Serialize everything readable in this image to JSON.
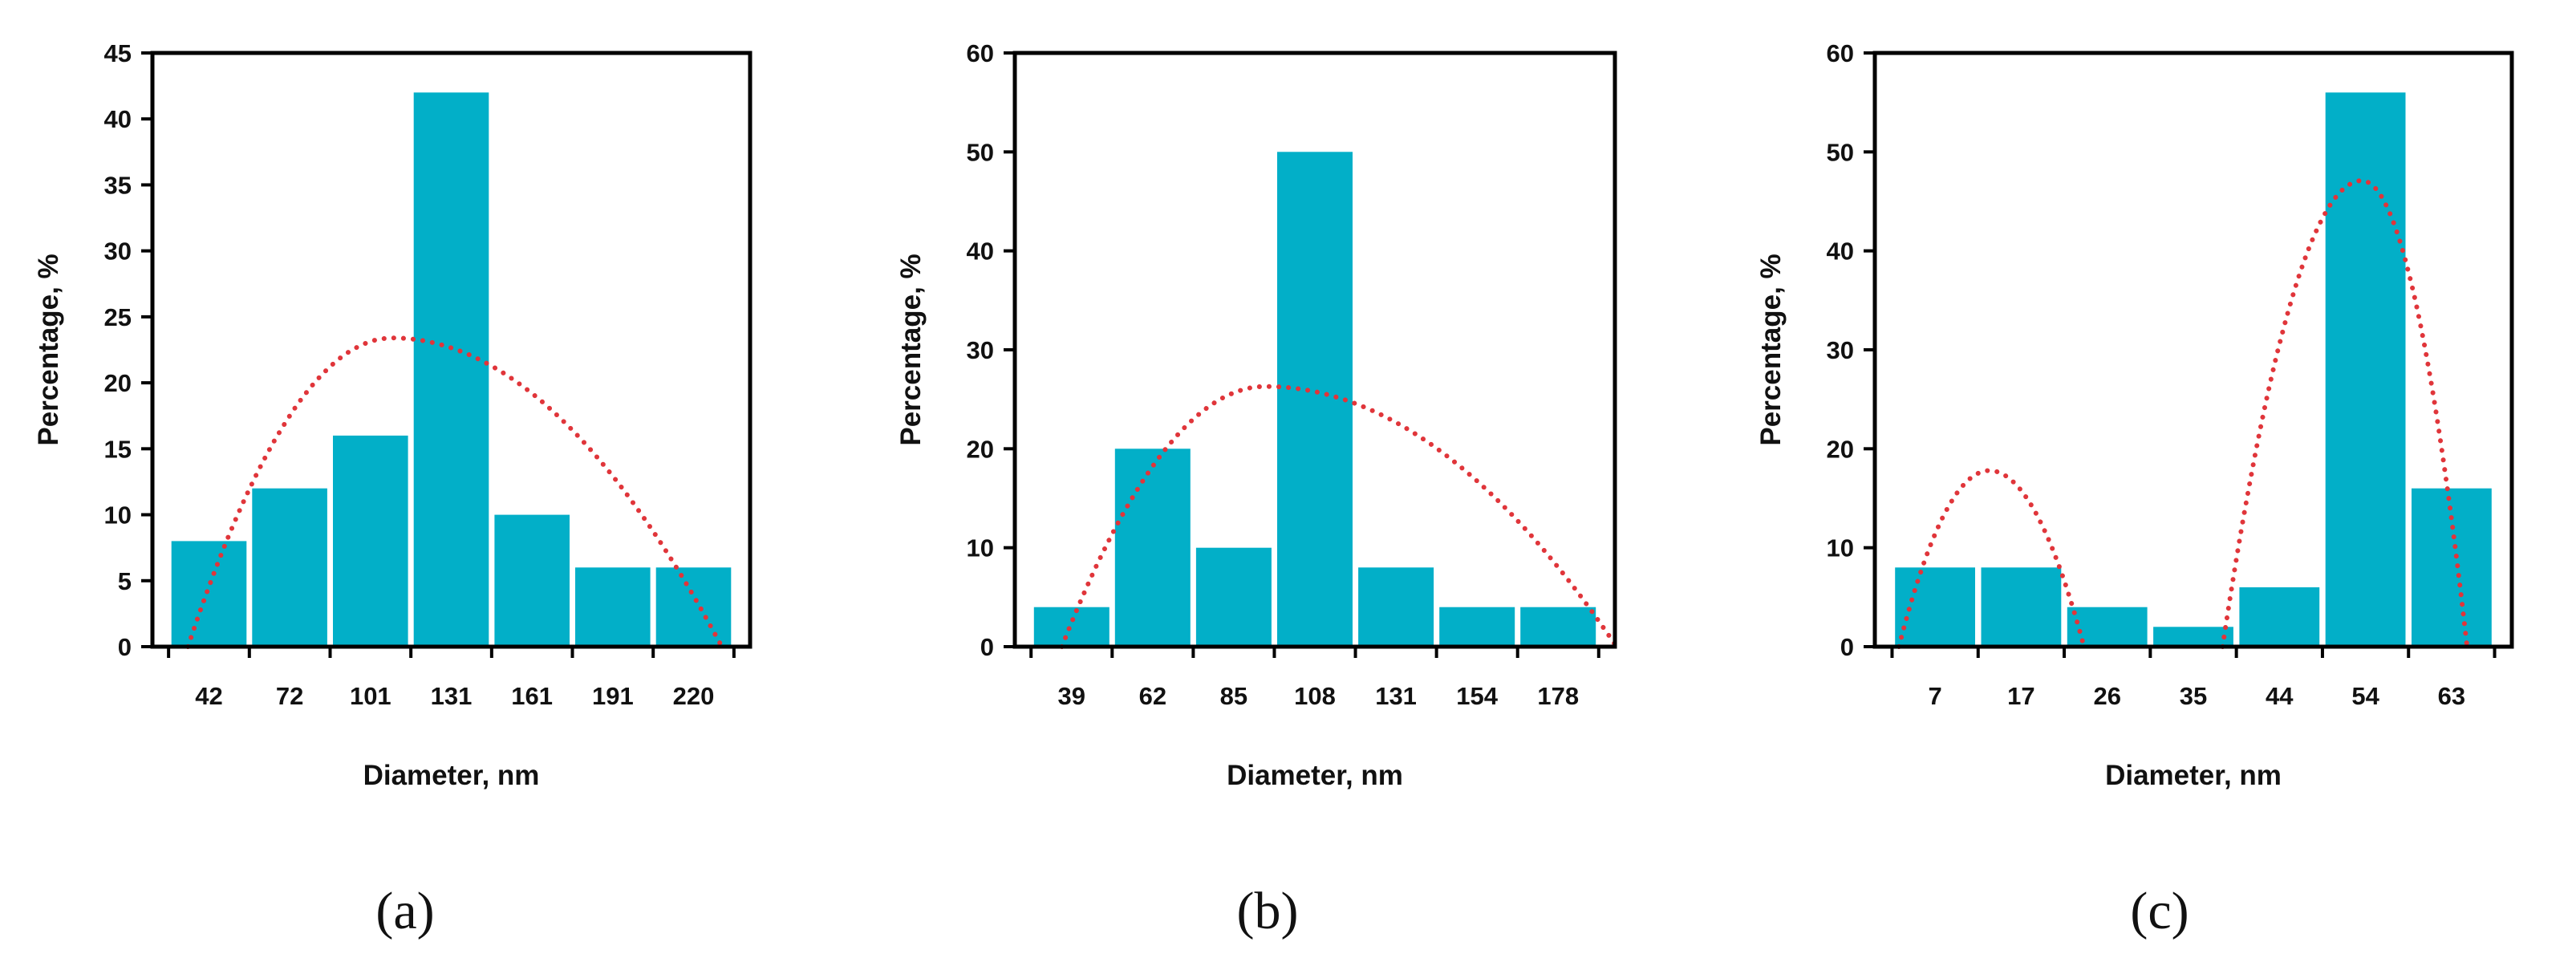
{
  "figure": {
    "panels": [
      "(a)",
      "(b)",
      "(c)"
    ]
  },
  "colors": {
    "bar": "#02AFC8",
    "fit": "#E0353A",
    "axis": "#000000"
  },
  "chart_data": [
    {
      "type": "bar",
      "panel_label": "(a)",
      "categories": [
        "42",
        "72",
        "101",
        "131",
        "161",
        "191",
        "220"
      ],
      "values": [
        8,
        12,
        16,
        42,
        10,
        6,
        6
      ],
      "xlabel": "Diameter, nm",
      "ylabel": "Percentage, %",
      "ylim": [
        0,
        45
      ],
      "yticks": [
        "0",
        "5",
        "10",
        "15",
        "20",
        "25",
        "30",
        "35",
        "40",
        "45"
      ],
      "grid": false,
      "fit": [
        {
          "name": "normal-fit",
          "style": "dotted",
          "start": -0.26,
          "end": 6.35,
          "peak_x": 2.27,
          "peak_y": 23.4
        }
      ]
    },
    {
      "type": "bar",
      "panel_label": "(b)",
      "categories": [
        "39",
        "62",
        "85",
        "108",
        "131",
        "154",
        "178"
      ],
      "values": [
        4,
        20,
        10,
        50,
        8,
        4,
        4
      ],
      "xlabel": "Diameter, nm",
      "ylabel": "Percentage, %",
      "ylim": [
        0,
        60
      ],
      "yticks": [
        "0",
        "10",
        "20",
        "30",
        "40",
        "50",
        "60"
      ],
      "grid": false,
      "fit": [
        {
          "name": "normal-fit",
          "style": "dotted",
          "start": -0.12,
          "end": 6.72,
          "peak_x": 2.39,
          "peak_y": 26.3
        }
      ]
    },
    {
      "type": "bar",
      "panel_label": "(c)",
      "categories": [
        "7",
        "17",
        "26",
        "35",
        "44",
        "54",
        "63"
      ],
      "values": [
        8,
        8,
        4,
        2,
        6,
        56,
        16
      ],
      "xlabel": "Diameter, nm",
      "ylabel": "Percentage, %",
      "ylim": [
        0,
        60
      ],
      "yticks": [
        "0",
        "10",
        "20",
        "30",
        "40",
        "50",
        "60"
      ],
      "grid": false,
      "fit": [
        {
          "name": "normal-fit-small",
          "style": "dotted",
          "start": -0.42,
          "end": 1.73,
          "peak_x": 0.63,
          "peak_y": 17.8
        },
        {
          "name": "normal-fit-large",
          "style": "dotted",
          "start": 3.34,
          "end": 6.18,
          "peak_x": 4.96,
          "peak_y": 47.1
        }
      ]
    }
  ]
}
